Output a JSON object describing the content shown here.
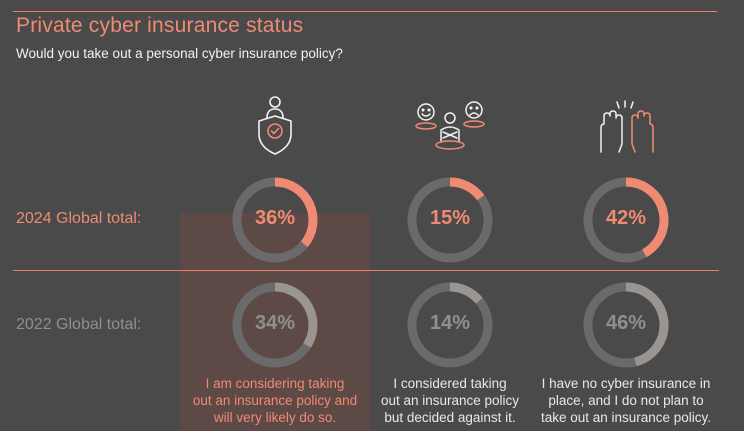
{
  "title": "Private cyber insurance status",
  "subtitle": "Would you take out a personal cyber insurance policy?",
  "colors": {
    "accent": "#f08a72",
    "track": "#6a6a6a",
    "past_arc": "#9a9590",
    "background": "#4a4a4a"
  },
  "icons": [
    "shield-person-icon",
    "people-reactions-icon",
    "raised-hands-icon"
  ],
  "chart_data": {
    "type": "donut",
    "row_labels": [
      "2024 Global total:",
      "2022 Global total:"
    ],
    "categories": [
      "I am considering taking out an insurance policy and will very likely do so.",
      "I considered taking out an insurance policy but decided against it.",
      "I have no cyber insurance in place, and I do not plan to take out an insurance policy."
    ],
    "series": [
      {
        "name": "2024 Global total:",
        "values": [
          36,
          15,
          42
        ],
        "labels": [
          "36%",
          "15%",
          "42%"
        ]
      },
      {
        "name": "2022 Global total:",
        "values": [
          34,
          14,
          46
        ],
        "labels": [
          "34%",
          "14%",
          "46%"
        ]
      }
    ]
  },
  "captions": [
    [
      "I am considering taking",
      "out an insurance policy and",
      "will very likely do so."
    ],
    [
      "I considered taking",
      "out an insurance policy",
      "but decided against it."
    ],
    [
      "I have no cyber insurance in",
      "place, and I do not plan to",
      "take out an insurance policy."
    ]
  ]
}
